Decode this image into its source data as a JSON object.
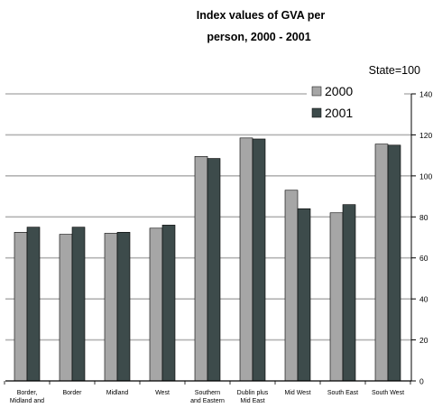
{
  "chart_data": {
    "type": "bar",
    "title_line1": "Index values of GVA per",
    "title_line2": "person, 2000 - 2001",
    "note": "State=100",
    "categories": [
      [
        "Border,",
        "Midland and"
      ],
      [
        "Border"
      ],
      [
        "Midland"
      ],
      [
        "West"
      ],
      [
        "Southern",
        "and Eastern"
      ],
      [
        "Dublin plus",
        "Mid East"
      ],
      [
        "Mid West"
      ],
      [
        "South East"
      ],
      [
        "South West"
      ]
    ],
    "series": [
      {
        "name": "2000",
        "values": [
          72.5,
          71.5,
          72,
          74.5,
          109.5,
          118.5,
          93,
          82,
          115.5
        ]
      },
      {
        "name": "2001",
        "values": [
          75,
          75,
          72.5,
          76,
          108.5,
          118,
          84,
          86,
          115
        ]
      }
    ],
    "ylim": [
      0,
      140
    ],
    "yticks": [
      0,
      20,
      40,
      60,
      80,
      100,
      120,
      140
    ],
    "grid": true,
    "legend_position": "top-right"
  },
  "colors": {
    "series_2000": "#a6a6a6",
    "series_2001": "#3d4b4b",
    "grid": "#b3b3b3",
    "axis": "#000000"
  }
}
